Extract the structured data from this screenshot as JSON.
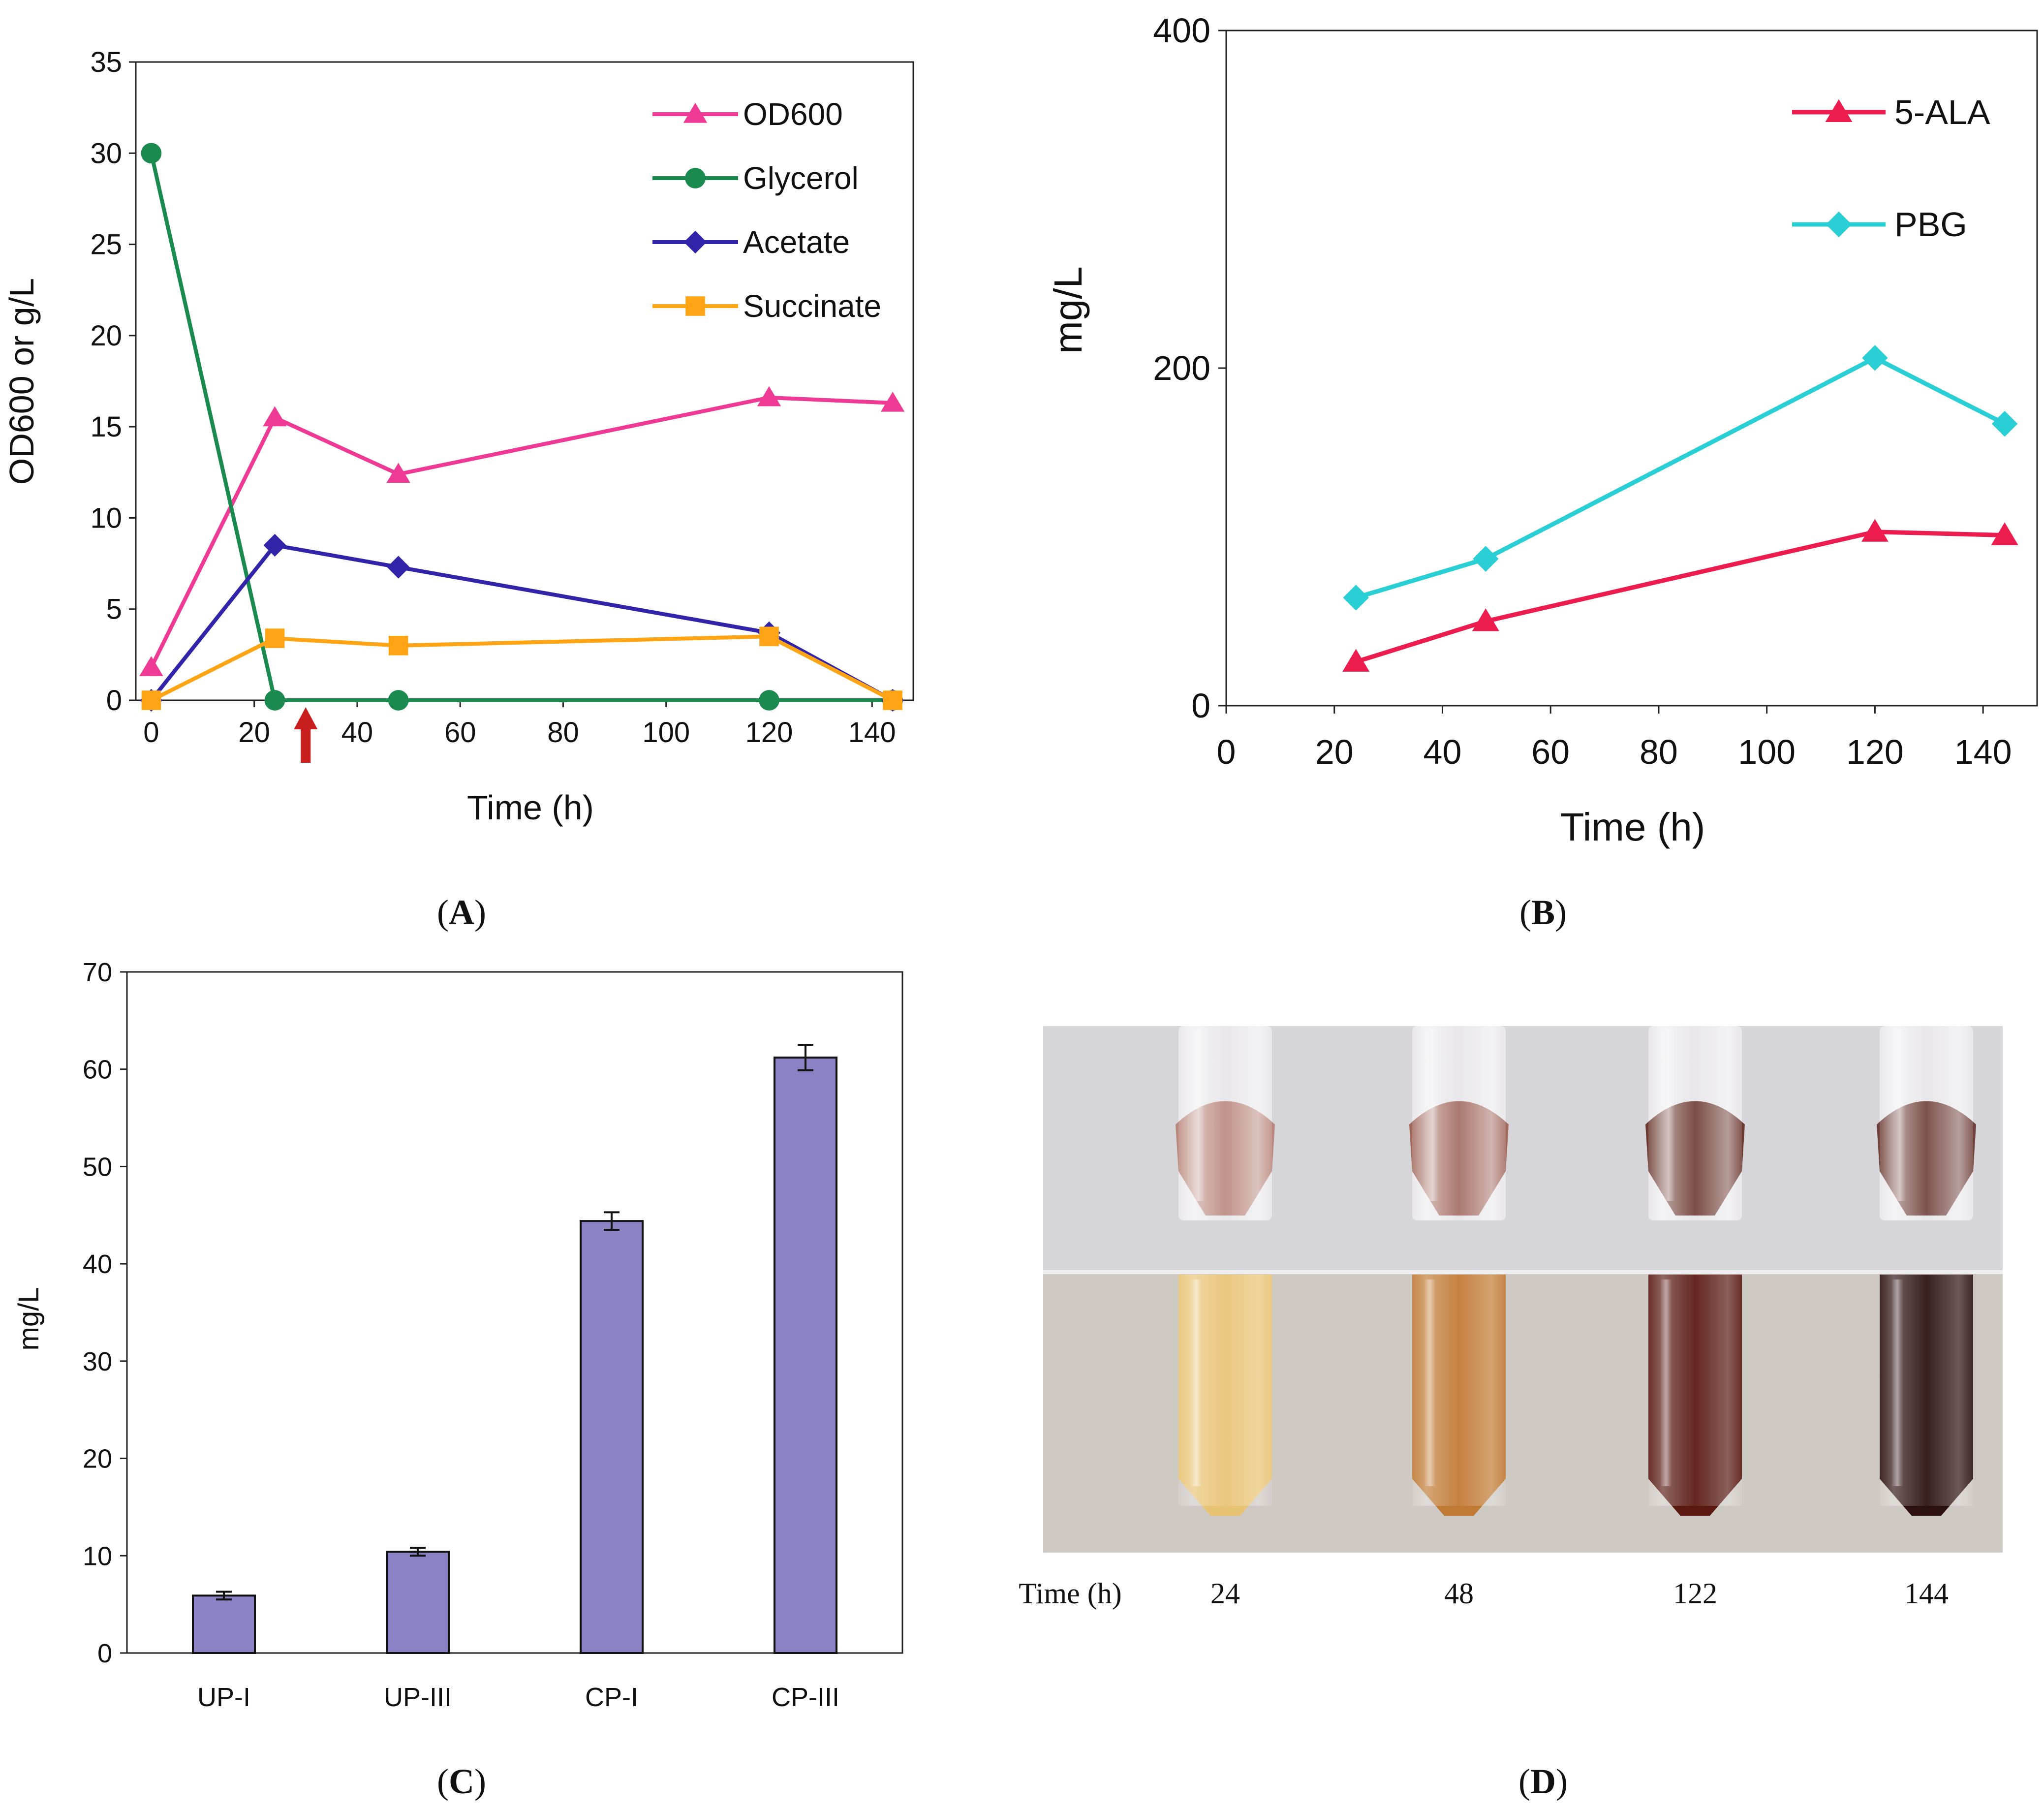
{
  "chart_data": [
    {
      "panel": "A",
      "type": "line",
      "panel_label": "A",
      "xlabel": "Time (h)",
      "ylabel": "OD600 or g/L",
      "xlim": [
        -3,
        148
      ],
      "ylim": [
        0,
        35
      ],
      "xticks": [
        0,
        20,
        40,
        60,
        80,
        100,
        120,
        140
      ],
      "yticks": [
        0,
        5,
        10,
        15,
        20,
        25,
        30,
        35
      ],
      "legend": "top-right",
      "annotation": "arrow at Time = 30 h",
      "arrow_x": 30,
      "series": [
        {
          "name": "OD600",
          "color": "#ee3a94",
          "marker": "triangle",
          "x": [
            0,
            24,
            48,
            120,
            144
          ],
          "values": [
            1.8,
            15.5,
            12.4,
            16.6,
            16.3
          ]
        },
        {
          "name": "Glycerol",
          "color": "#1a8a4e",
          "marker": "circle",
          "x": [
            0,
            24,
            48,
            120,
            144
          ],
          "values": [
            30.0,
            0,
            0,
            0,
            0
          ]
        },
        {
          "name": "Acetate",
          "color": "#3224a8",
          "marker": "diamond",
          "x": [
            0,
            24,
            48,
            120,
            144
          ],
          "values": [
            0,
            8.5,
            7.3,
            3.7,
            0
          ]
        },
        {
          "name": "Succinate",
          "color": "#ffa515",
          "marker": "square",
          "x": [
            0,
            24,
            48,
            120,
            144
          ],
          "values": [
            0,
            3.4,
            3.0,
            3.5,
            0
          ]
        }
      ]
    },
    {
      "panel": "B",
      "type": "line",
      "panel_label": "B",
      "xlabel": "Time (h)",
      "ylabel": "mg/L",
      "xlim": [
        0,
        150
      ],
      "ylim": [
        0,
        400
      ],
      "xticks": [
        0,
        20,
        40,
        60,
        80,
        100,
        120,
        140
      ],
      "yticks": [
        0,
        200,
        400
      ],
      "legend": "top-right",
      "series": [
        {
          "name": "5-ALA",
          "color": "#ec1c4e",
          "marker": "triangle",
          "x": [
            24,
            48,
            120,
            144
          ],
          "values": [
            26,
            50,
            103,
            101
          ]
        },
        {
          "name": "PBG",
          "color": "#2acfd6",
          "marker": "diamond",
          "x": [
            24,
            48,
            120,
            144
          ],
          "values": [
            64,
            87,
            206,
            167
          ]
        }
      ]
    },
    {
      "panel": "C",
      "type": "bar",
      "panel_label": "C",
      "xlabel": "",
      "ylabel": "mg/L",
      "ylim": [
        0,
        70
      ],
      "yticks": [
        0,
        10,
        20,
        30,
        40,
        50,
        60,
        70
      ],
      "bar_color": "#8b82c6",
      "categories": [
        "UP-I",
        "UP-III",
        "CP-I",
        "CP-III"
      ],
      "values": [
        5.9,
        10.4,
        44.4,
        61.2
      ],
      "errors": [
        0.4,
        0.4,
        0.9,
        1.3
      ]
    }
  ],
  "panel_d": {
    "panel_label": "D",
    "time_label": "Time (h)",
    "times": [
      "24",
      "48",
      "122",
      "144"
    ],
    "pellet_colors": [
      "#b9877c",
      "#a26a5f",
      "#6d3a32",
      "#70403a"
    ],
    "liquid_colors": [
      "#e8c374",
      "#c07a33",
      "#5a1a12",
      "#2d1110"
    ]
  }
}
